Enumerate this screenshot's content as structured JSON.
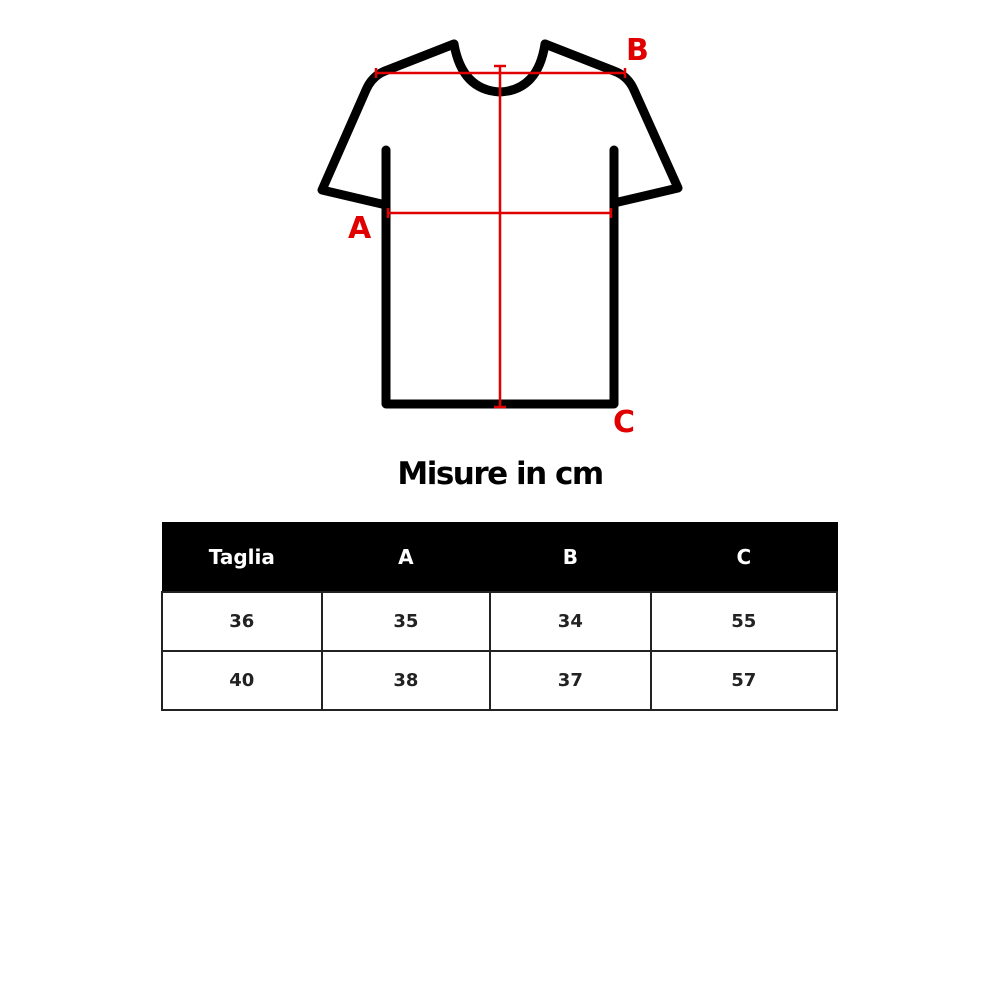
{
  "diagram": {
    "labels": {
      "a": "A",
      "b": "B",
      "c": "C"
    },
    "outline_color": "#000000",
    "measure_color": "#e00000"
  },
  "title": "Misure in cm",
  "table": {
    "headers": [
      "Taglia",
      "A",
      "B",
      "C"
    ],
    "rows": [
      [
        "36",
        "35",
        "34",
        "55"
      ],
      [
        "40",
        "38",
        "37",
        "57"
      ]
    ]
  }
}
